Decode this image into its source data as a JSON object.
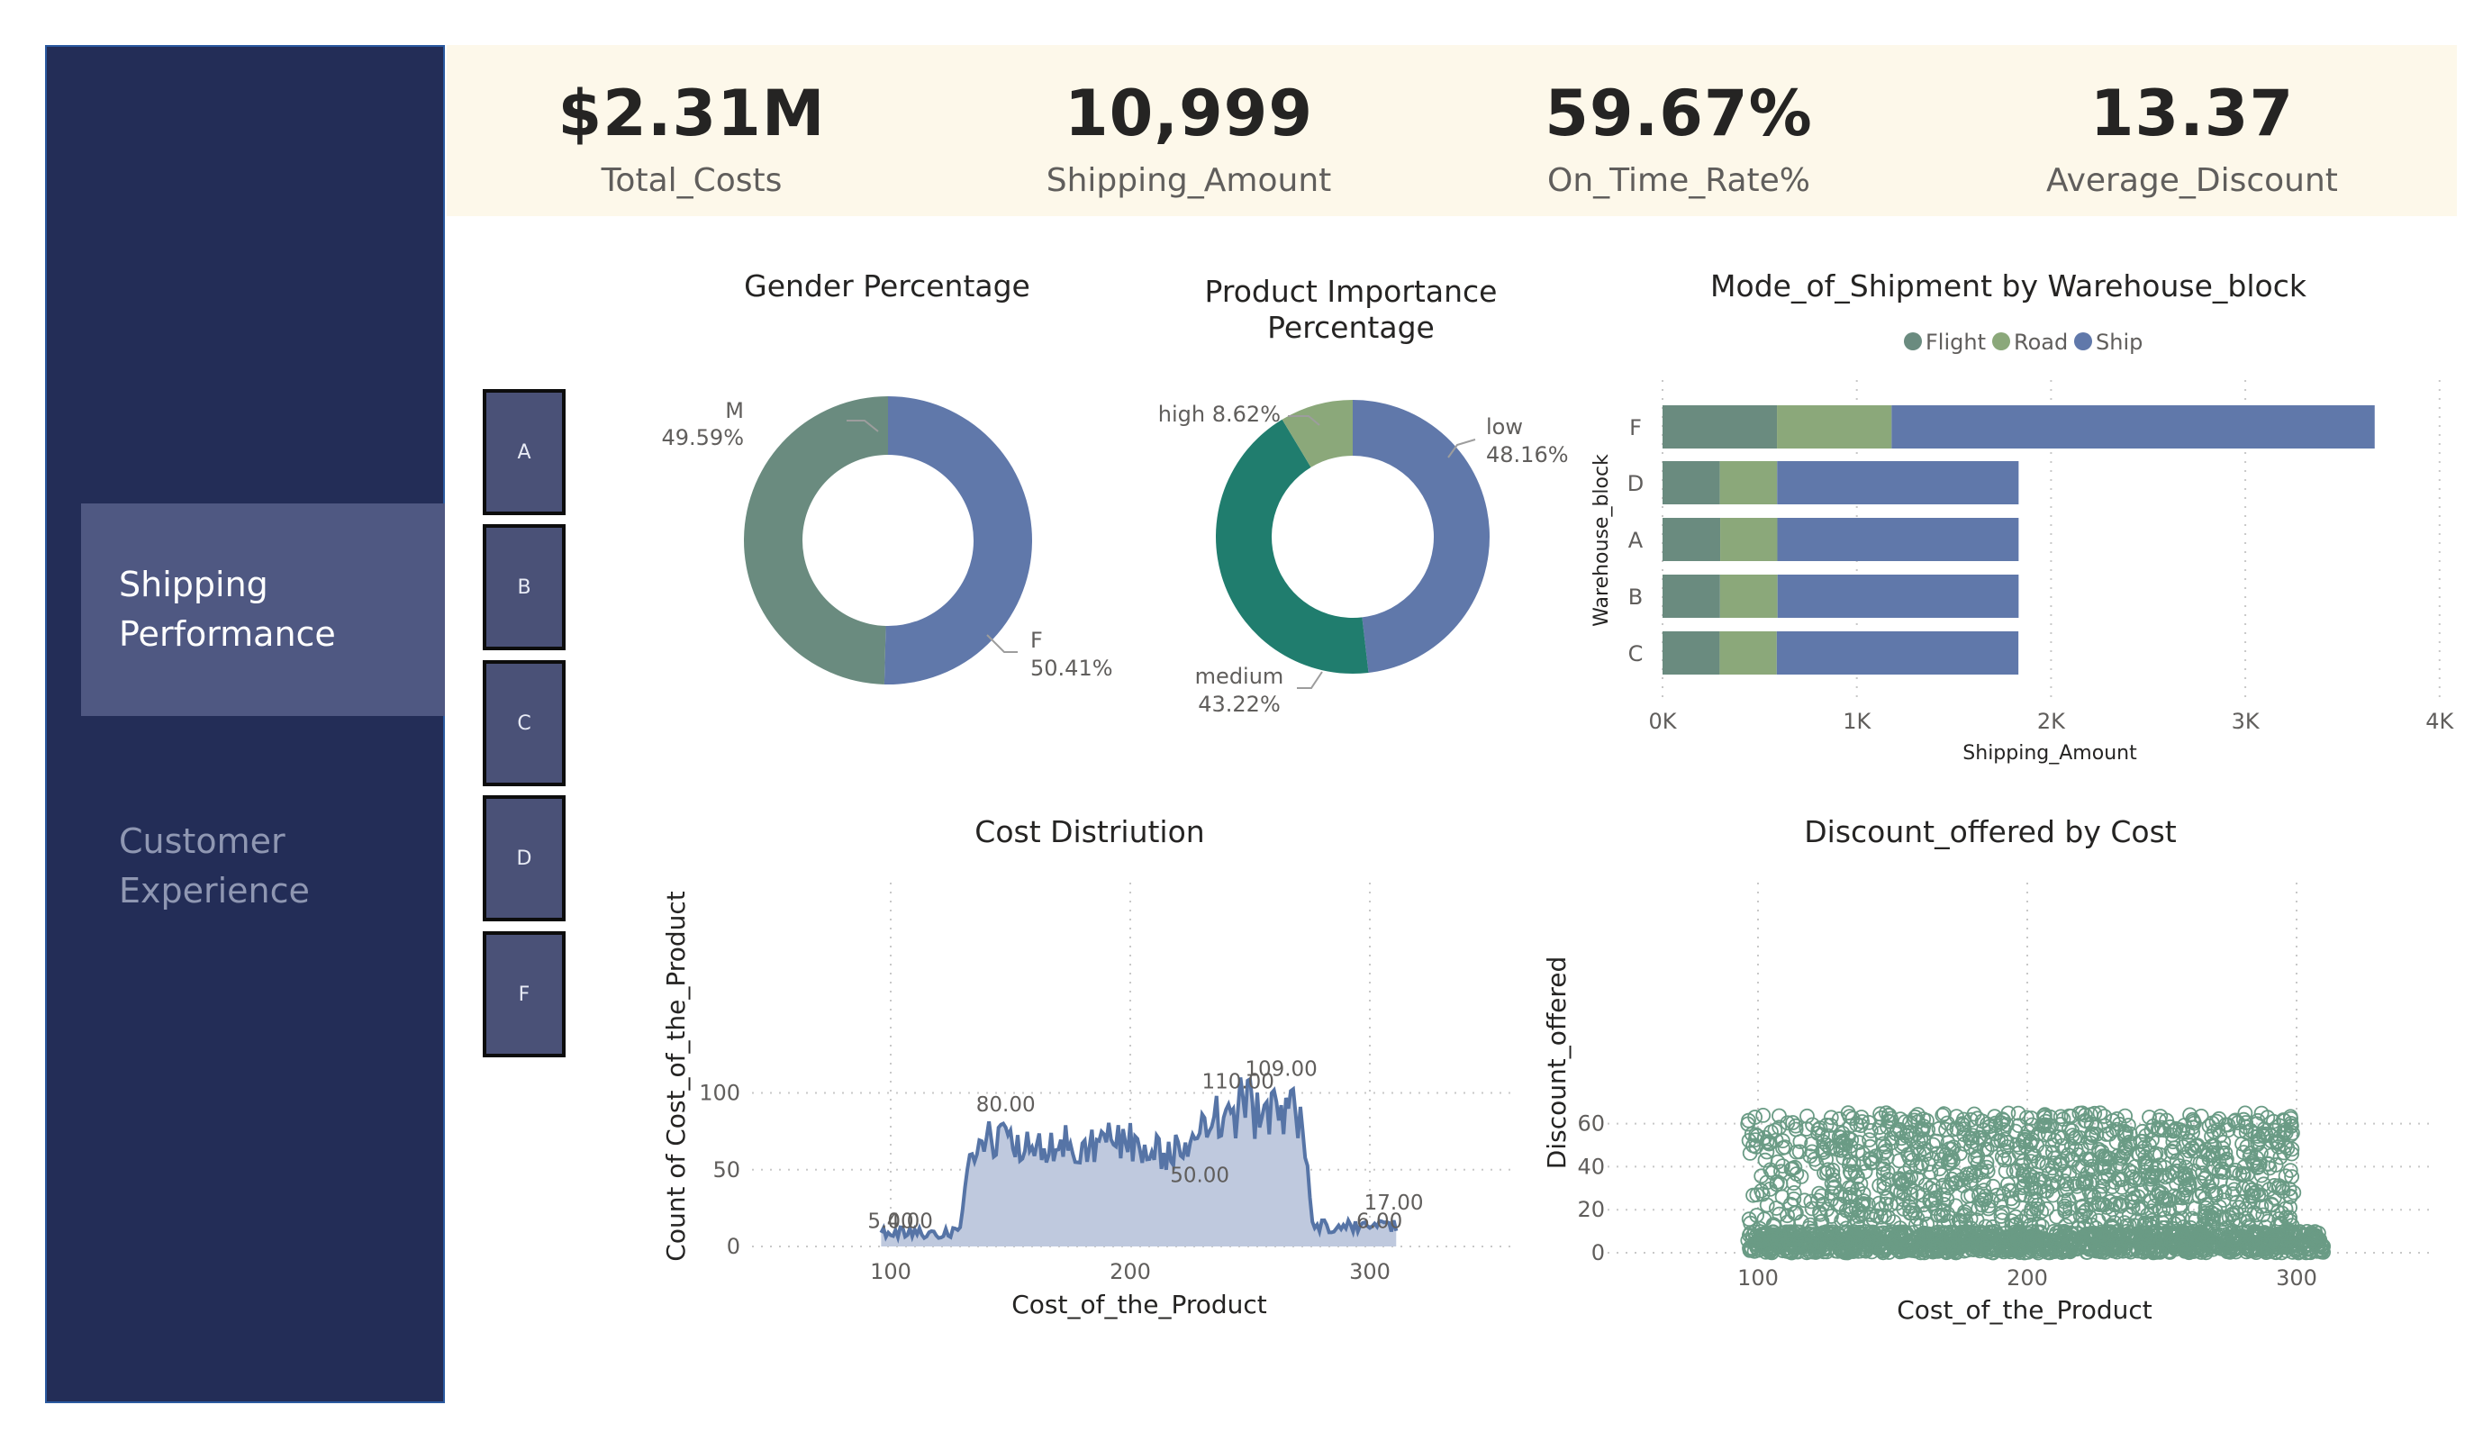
{
  "sidebar": {
    "items": [
      {
        "label_line1": "Shipping",
        "label_line2": "Performance",
        "active": true
      },
      {
        "label_line1": "Customer",
        "label_line2": "Experience",
        "active": false
      }
    ]
  },
  "kpis": [
    {
      "value": "$2.31M",
      "label": "Total_Costs"
    },
    {
      "value": "10,999",
      "label": "Shipping_Amount"
    },
    {
      "value": "59.67%",
      "label": "On_Time_Rate%"
    },
    {
      "value": "13.37",
      "label": "Average_Discount"
    }
  ],
  "slicer": {
    "items": [
      "A",
      "B",
      "C",
      "D",
      "F"
    ]
  },
  "colors": {
    "sidebar_bg": "#232d57",
    "kpi_bg": "#fdf8ea",
    "flight": "#6a8b7f",
    "road": "#8ba87a",
    "ship": "#6078aa",
    "teal": "#207d6e",
    "area_fill": "#bfc9de"
  },
  "chart_data": [
    {
      "id": "gender",
      "type": "pie",
      "title": "Gender Percentage",
      "slices": [
        {
          "label": "F",
          "pct_label": "50.41%",
          "value": 50.41,
          "color": "#6078aa"
        },
        {
          "label": "M",
          "pct_label": "49.59%",
          "value": 49.59,
          "color": "#6a8b7f"
        }
      ]
    },
    {
      "id": "importance",
      "type": "pie",
      "title_line1": "Product Importance",
      "title_line2": "Percentage",
      "slices": [
        {
          "label": "low",
          "pct_label": "48.16%",
          "value": 48.16,
          "color": "#6078aa"
        },
        {
          "label": "medium",
          "pct_label": "43.22%",
          "value": 43.22,
          "color": "#207d6e"
        },
        {
          "label": "high",
          "pct_label": "8.62%",
          "value": 8.62,
          "color": "#8ba87a"
        }
      ]
    },
    {
      "id": "mode_by_block",
      "type": "bar",
      "title": "Mode_of_Shipment by Warehouse_block",
      "xlabel": "Shipping_Amount",
      "ylabel": "Warehouse_block",
      "categories": [
        "F",
        "D",
        "A",
        "B",
        "C"
      ],
      "series": [
        {
          "name": "Flight",
          "color": "#6a8b7f",
          "values": [
            589,
            295,
            297,
            296,
            294
          ]
        },
        {
          "name": "Road",
          "color": "#8ba87a",
          "values": [
            590,
            295,
            294,
            296,
            294
          ]
        },
        {
          "name": "Ship",
          "color": "#6078aa",
          "values": [
            2487,
            1243,
            1242,
            1241,
            1244
          ]
        }
      ],
      "xlim": [
        0,
        4000
      ],
      "xticks": [
        "0K",
        "1K",
        "2K",
        "3K",
        "4K"
      ],
      "grid": true
    },
    {
      "id": "cost_distribution",
      "type": "area",
      "title": "Cost Distriution",
      "xlabel": "Cost_of_the_Product",
      "ylabel": "Count of Cost_of_the_Product",
      "xlim": [
        90,
        350
      ],
      "ylim": [
        0,
        120
      ],
      "xticks": [
        "100",
        "200",
        "300"
      ],
      "yticks": [
        "0",
        "50",
        "100"
      ],
      "data_labels": [
        "5.00",
        "4.00",
        "80.00",
        "110.00",
        "109.00",
        "50.00",
        "17.00",
        "6.00"
      ],
      "grid": true
    },
    {
      "id": "discount_vs_cost",
      "type": "scatter",
      "title": "Discount_offered by Cost",
      "xlabel": "Cost_of_the_Product",
      "ylabel": "Discount_offered",
      "xlim": [
        80,
        330
      ],
      "ylim": [
        -2,
        68
      ],
      "xticks": [
        "100",
        "200",
        "300"
      ],
      "yticks": [
        "0",
        "20",
        "40",
        "60"
      ],
      "marker_color": "#6a9b85",
      "grid": true
    }
  ]
}
